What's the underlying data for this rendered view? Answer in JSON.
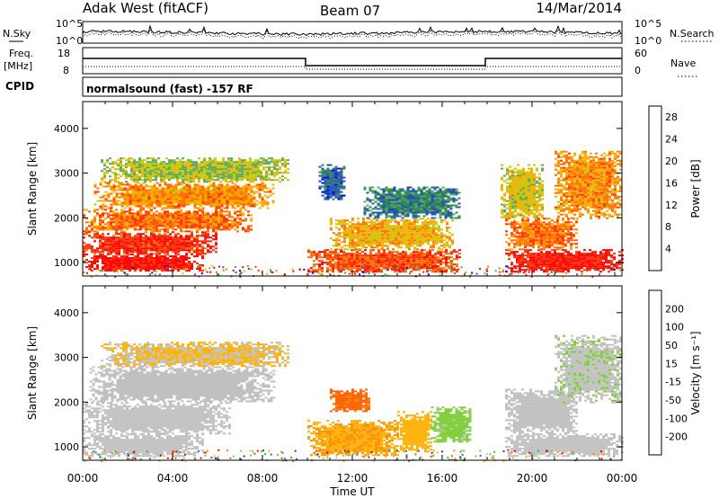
{
  "header": {
    "title_left": "Adak West (fitACF)",
    "title_center": "Beam 07",
    "title_right": "14/Mar/2014"
  },
  "status_strips": {
    "nsky_label": "N.Sky",
    "nsky_ticks": [
      "10^5",
      "10^0"
    ],
    "nsearch_label": "N.Search",
    "nsearch_ticks": [
      "10^5",
      "10^0"
    ],
    "freq_label_line1": "Freq.",
    "freq_label_line2": "[MHz]",
    "freq_ticks": [
      "18",
      "8"
    ],
    "nave_label": "Nave",
    "nave_ticks": [
      "60",
      "0"
    ],
    "cpid_label": "CPID",
    "cpid_text": "normalsound (fast) -157 RF"
  },
  "colors": {
    "power": [
      "#0000ff",
      "#2850b4",
      "#2e8b57",
      "#5aaa5a",
      "#c8c800",
      "#ffaa00",
      "#ff7000",
      "#ff3000",
      "#ff0000"
    ],
    "velocity": [
      "#ff0000",
      "#ff6000",
      "#ff8c00",
      "#ffb000",
      "#c0c0c0",
      "#7ccd32",
      "#4caf50",
      "#2e6bb0",
      "#1e3ca0"
    ]
  },
  "chart_data": [
    {
      "type": "heatmap",
      "name": "power",
      "ylabel": "Slant Range [km]",
      "yticks": [
        "1000",
        "2000",
        "3000",
        "4000"
      ],
      "ylim": [
        700,
        4600
      ],
      "xlim": [
        0,
        24
      ],
      "colorbar": {
        "label": "Power [dB]",
        "ticks": [
          "4",
          "8",
          "12",
          "16",
          "20",
          "24",
          "28"
        ],
        "range": [
          0,
          30
        ]
      },
      "regions": [
        {
          "x": [
            0.0,
            5.3
          ],
          "y": [
            800,
            1200
          ],
          "value": 28
        },
        {
          "x": [
            0.0,
            6.0
          ],
          "y": [
            1200,
            1700
          ],
          "value": 26
        },
        {
          "x": [
            0.0,
            7.5
          ],
          "y": [
            1700,
            2200
          ],
          "value": 22
        },
        {
          "x": [
            0.5,
            8.5
          ],
          "y": [
            2200,
            2800
          ],
          "value": 20
        },
        {
          "x": [
            0.8,
            9.2
          ],
          "y": [
            2800,
            3350
          ],
          "value": 14
        },
        {
          "x": [
            10.0,
            16.8
          ],
          "y": [
            800,
            1300
          ],
          "value": 24
        },
        {
          "x": [
            11.0,
            16.5
          ],
          "y": [
            1300,
            2000
          ],
          "value": 18
        },
        {
          "x": [
            12.5,
            16.8
          ],
          "y": [
            2000,
            2700
          ],
          "value": 8
        },
        {
          "x": [
            10.5,
            11.6
          ],
          "y": [
            2400,
            3200
          ],
          "value": 6
        },
        {
          "x": [
            18.8,
            24.0
          ],
          "y": [
            800,
            1300
          ],
          "value": 28
        },
        {
          "x": [
            18.8,
            22.0
          ],
          "y": [
            1300,
            2000
          ],
          "value": 22
        },
        {
          "x": [
            18.6,
            20.5
          ],
          "y": [
            2000,
            3200
          ],
          "value": 16
        },
        {
          "x": [
            21.0,
            24.0
          ],
          "y": [
            2000,
            3500
          ],
          "value": 20
        }
      ]
    },
    {
      "type": "heatmap",
      "name": "velocity",
      "ylabel": "Slant Range [km]",
      "yticks": [
        "1000",
        "2000",
        "3000",
        "4000"
      ],
      "ylim": [
        700,
        4600
      ],
      "xlim": [
        0,
        24
      ],
      "xlabel": "Time UT",
      "xticks": [
        "00:00",
        "04:00",
        "08:00",
        "12:00",
        "16:00",
        "20:00",
        "00:00"
      ],
      "colorbar": {
        "label": "Velocity [m s⁻¹]",
        "ticks": [
          "200",
          "100",
          "50",
          "15",
          "-15",
          "-50",
          "-100",
          "-200"
        ],
        "range": [
          -250,
          250
        ]
      },
      "regions": [
        {
          "x": [
            0.0,
            5.3
          ],
          "y": [
            800,
            1300
          ],
          "value": 0
        },
        {
          "x": [
            0.0,
            6.5
          ],
          "y": [
            1300,
            2000
          ],
          "value": 0
        },
        {
          "x": [
            0.3,
            8.5
          ],
          "y": [
            2000,
            2800
          ],
          "value": -10
        },
        {
          "x": [
            0.8,
            9.2
          ],
          "y": [
            2800,
            3350
          ],
          "value": -30
        },
        {
          "x": [
            10.0,
            14.0
          ],
          "y": [
            800,
            1600
          ],
          "value": -80
        },
        {
          "x": [
            11.0,
            12.8
          ],
          "y": [
            1800,
            2300
          ],
          "value": -150
        },
        {
          "x": [
            14.0,
            15.5
          ],
          "y": [
            900,
            1800
          ],
          "value": -60
        },
        {
          "x": [
            15.5,
            17.3
          ],
          "y": [
            1100,
            1900
          ],
          "value": 40
        },
        {
          "x": [
            18.8,
            24.0
          ],
          "y": [
            800,
            1300
          ],
          "value": 0
        },
        {
          "x": [
            18.8,
            22.0
          ],
          "y": [
            1300,
            2300
          ],
          "value": 0
        },
        {
          "x": [
            21.0,
            24.0
          ],
          "y": [
            2000,
            3500
          ],
          "value": 20
        }
      ]
    }
  ]
}
